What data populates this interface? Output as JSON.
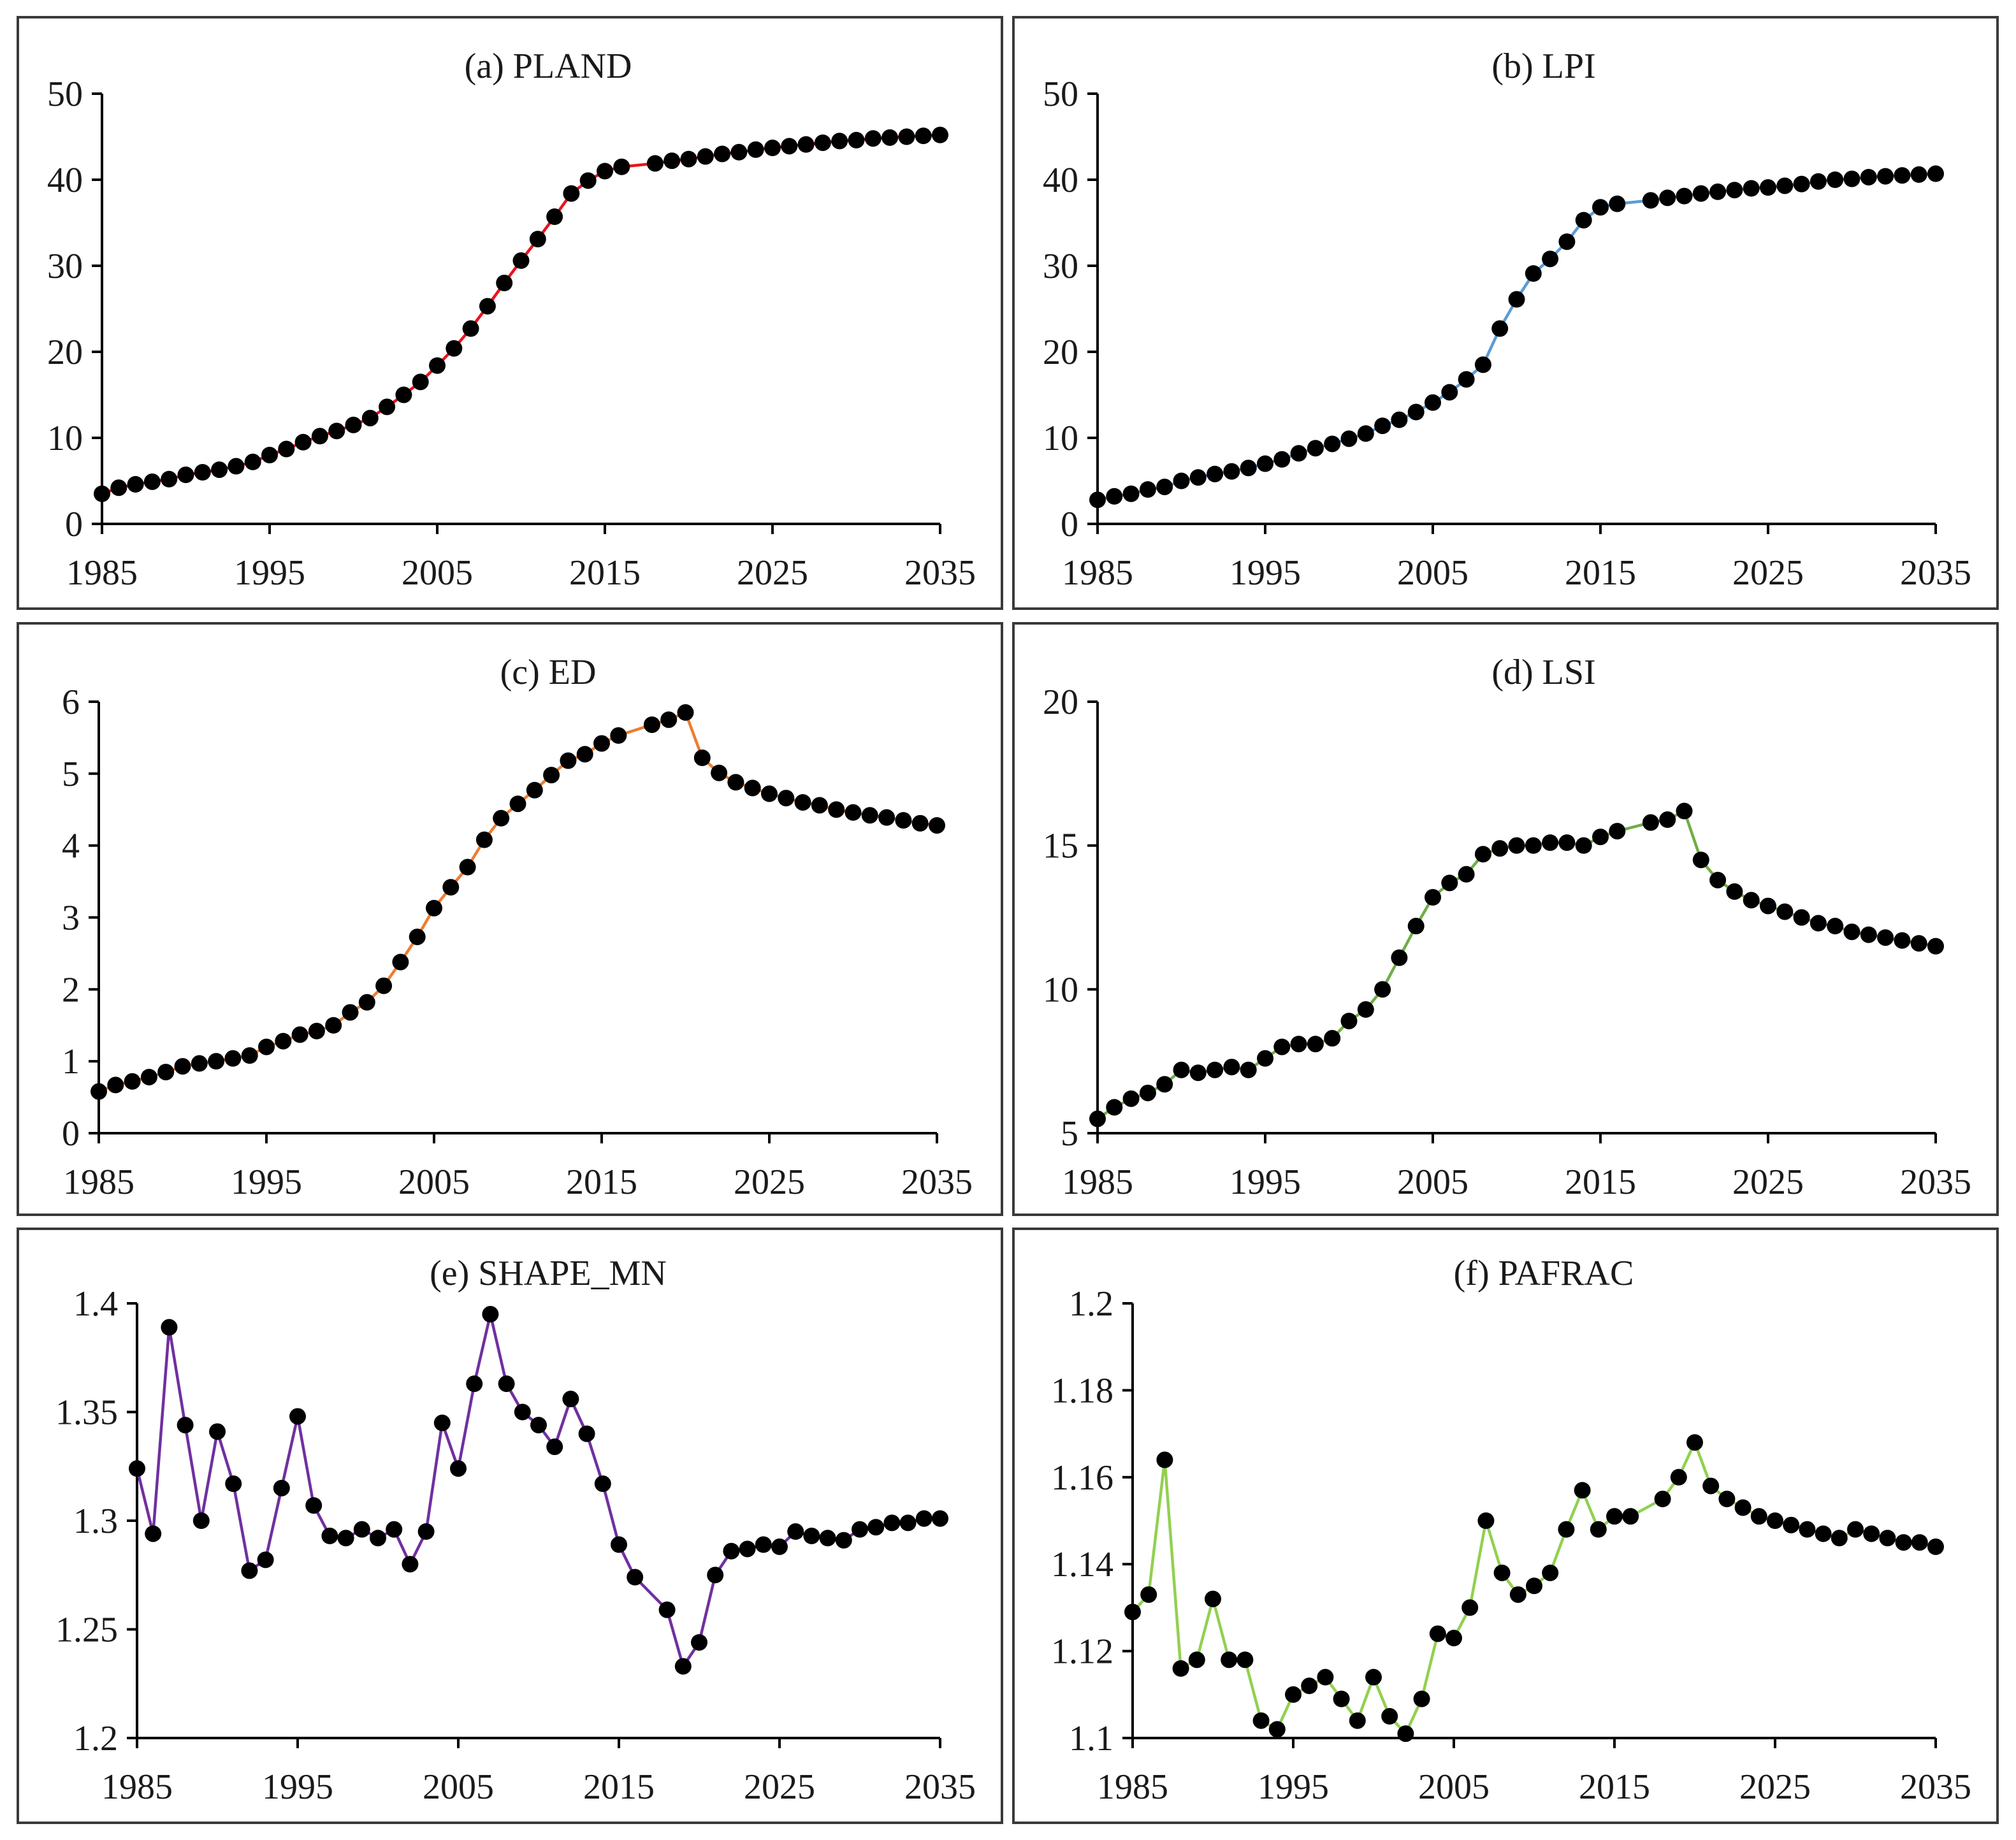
{
  "chart_data": [
    {
      "type": "line",
      "title": "(a) PLAND",
      "color": "#e8141c",
      "ylim": [
        0,
        50
      ],
      "yticks": [
        0,
        10,
        20,
        30,
        40,
        50
      ],
      "xlim": [
        1985,
        2035
      ],
      "xticks": [
        1985,
        1995,
        2005,
        2015,
        2025,
        2035
      ],
      "x": [
        1985,
        1986,
        1987,
        1988,
        1989,
        1990,
        1991,
        1992,
        1993,
        1994,
        1995,
        1996,
        1997,
        1998,
        1999,
        2000,
        2001,
        2002,
        2003,
        2004,
        2005,
        2006,
        2007,
        2008,
        2009,
        2010,
        2011,
        2012,
        2013,
        2014,
        2015,
        2016,
        2018,
        2019,
        2020,
        2021,
        2022,
        2023,
        2024,
        2025,
        2026,
        2027,
        2028,
        2029,
        2030,
        2031,
        2032,
        2033,
        2034,
        2035
      ],
      "values": [
        3.5,
        4.2,
        4.6,
        4.9,
        5.2,
        5.7,
        6.0,
        6.3,
        6.7,
        7.2,
        8.0,
        8.7,
        9.5,
        10.2,
        10.8,
        11.5,
        12.3,
        13.6,
        15.0,
        16.5,
        18.4,
        20.4,
        22.7,
        25.3,
        28.0,
        30.6,
        33.1,
        35.7,
        38.4,
        39.9,
        41.0,
        41.5,
        41.9,
        42.2,
        42.4,
        42.7,
        43.0,
        43.2,
        43.5,
        43.7,
        43.9,
        44.1,
        44.3,
        44.5,
        44.6,
        44.8,
        44.9,
        45.0,
        45.1,
        45.2
      ]
    },
    {
      "type": "line",
      "title": "(b) LPI",
      "color": "#5b9bd5",
      "ylim": [
        0,
        50
      ],
      "yticks": [
        0,
        10,
        20,
        30,
        40,
        50
      ],
      "xlim": [
        1985,
        2035
      ],
      "xticks": [
        1985,
        1995,
        2005,
        2015,
        2025,
        2035
      ],
      "x": [
        1985,
        1986,
        1987,
        1988,
        1989,
        1990,
        1991,
        1992,
        1993,
        1994,
        1995,
        1996,
        1997,
        1998,
        1999,
        2000,
        2001,
        2002,
        2003,
        2004,
        2005,
        2006,
        2007,
        2008,
        2009,
        2010,
        2011,
        2012,
        2013,
        2014,
        2015,
        2016,
        2018,
        2019,
        2020,
        2021,
        2022,
        2023,
        2024,
        2025,
        2026,
        2027,
        2028,
        2029,
        2030,
        2031,
        2032,
        2033,
        2034,
        2035
      ],
      "values": [
        2.8,
        3.2,
        3.5,
        4.0,
        4.3,
        5.0,
        5.4,
        5.8,
        6.1,
        6.5,
        7.0,
        7.5,
        8.2,
        8.8,
        9.3,
        9.9,
        10.5,
        11.4,
        12.1,
        13.0,
        14.1,
        15.3,
        16.8,
        18.5,
        22.7,
        26.1,
        29.1,
        30.8,
        32.8,
        35.3,
        36.8,
        37.2,
        37.6,
        37.9,
        38.1,
        38.4,
        38.6,
        38.8,
        39.0,
        39.1,
        39.3,
        39.5,
        39.8,
        40.0,
        40.1,
        40.3,
        40.4,
        40.5,
        40.6,
        40.7
      ]
    },
    {
      "type": "line",
      "title": "(c) ED",
      "color": "#ed7d31",
      "ylim": [
        0,
        6
      ],
      "yticks": [
        0,
        1,
        2,
        3,
        4,
        5,
        6
      ],
      "xlim": [
        1985,
        2035
      ],
      "xticks": [
        1985,
        1995,
        2005,
        2015,
        2025,
        2035
      ],
      "x": [
        1985,
        1986,
        1987,
        1988,
        1989,
        1990,
        1991,
        1992,
        1993,
        1994,
        1995,
        1996,
        1997,
        1998,
        1999,
        2000,
        2001,
        2002,
        2003,
        2004,
        2005,
        2006,
        2007,
        2008,
        2009,
        2010,
        2011,
        2012,
        2013,
        2014,
        2015,
        2016,
        2018,
        2019,
        2020,
        2021,
        2022,
        2023,
        2024,
        2025,
        2026,
        2027,
        2028,
        2029,
        2030,
        2031,
        2032,
        2033,
        2034,
        2035
      ],
      "values": [
        0.58,
        0.67,
        0.72,
        0.78,
        0.85,
        0.93,
        0.97,
        1.0,
        1.04,
        1.08,
        1.2,
        1.28,
        1.37,
        1.42,
        1.5,
        1.68,
        1.82,
        2.05,
        2.38,
        2.73,
        3.13,
        3.42,
        3.7,
        4.08,
        4.38,
        4.58,
        4.77,
        4.98,
        5.18,
        5.27,
        5.42,
        5.53,
        5.68,
        5.75,
        5.85,
        5.22,
        5.01,
        4.88,
        4.8,
        4.72,
        4.66,
        4.6,
        4.56,
        4.5,
        4.46,
        4.42,
        4.39,
        4.35,
        4.31,
        4.28
      ]
    },
    {
      "type": "line",
      "title": "(d) LSI",
      "color": "#70ad47",
      "ylim": [
        5,
        20
      ],
      "yticks": [
        5,
        10,
        15,
        20
      ],
      "xlim": [
        1985,
        2035
      ],
      "xticks": [
        1985,
        1995,
        2005,
        2015,
        2025,
        2035
      ],
      "x": [
        1985,
        1986,
        1987,
        1988,
        1989,
        1990,
        1991,
        1992,
        1993,
        1994,
        1995,
        1996,
        1997,
        1998,
        1999,
        2000,
        2001,
        2002,
        2003,
        2004,
        2005,
        2006,
        2007,
        2008,
        2009,
        2010,
        2011,
        2012,
        2013,
        2014,
        2015,
        2016,
        2018,
        2019,
        2020,
        2021,
        2022,
        2023,
        2024,
        2025,
        2026,
        2027,
        2028,
        2029,
        2030,
        2031,
        2032,
        2033,
        2034,
        2035
      ],
      "values": [
        5.5,
        5.9,
        6.2,
        6.4,
        6.7,
        7.2,
        7.1,
        7.2,
        7.3,
        7.2,
        7.6,
        8.0,
        8.1,
        8.1,
        8.3,
        8.9,
        9.3,
        10.0,
        11.1,
        12.2,
        13.2,
        13.7,
        14.0,
        14.7,
        14.9,
        15.0,
        15.0,
        15.1,
        15.1,
        15.0,
        15.3,
        15.5,
        15.8,
        15.9,
        16.2,
        14.5,
        13.8,
        13.4,
        13.1,
        12.9,
        12.7,
        12.5,
        12.3,
        12.2,
        12.0,
        11.9,
        11.8,
        11.7,
        11.6,
        11.5
      ]
    },
    {
      "type": "line",
      "title": "(e) SHAPE_MN",
      "color": "#7030a0",
      "ylim": [
        1.2,
        1.4
      ],
      "yticks": [
        1.2,
        1.25,
        1.3,
        1.35,
        1.4
      ],
      "ytick_labels": [
        "1.2",
        "1.25",
        "1.3",
        "1.35",
        "1.4"
      ],
      "xlim": [
        1985,
        2035
      ],
      "xticks": [
        1985,
        1995,
        2005,
        2015,
        2025,
        2035
      ],
      "x": [
        1985,
        1986,
        1987,
        1988,
        1989,
        1990,
        1991,
        1992,
        1993,
        1994,
        1995,
        1996,
        1997,
        1998,
        1999,
        2000,
        2001,
        2002,
        2003,
        2004,
        2005,
        2006,
        2007,
        2008,
        2009,
        2010,
        2011,
        2012,
        2013,
        2014,
        2015,
        2016,
        2018,
        2019,
        2020,
        2021,
        2022,
        2023,
        2024,
        2025,
        2026,
        2027,
        2028,
        2029,
        2030,
        2031,
        2032,
        2033,
        2034,
        2035
      ],
      "values": [
        1.324,
        1.294,
        1.389,
        1.344,
        1.3,
        1.341,
        1.317,
        1.277,
        1.282,
        1.315,
        1.348,
        1.307,
        1.293,
        1.292,
        1.296,
        1.292,
        1.296,
        1.28,
        1.295,
        1.345,
        1.324,
        1.363,
        1.395,
        1.363,
        1.35,
        1.344,
        1.334,
        1.356,
        1.34,
        1.317,
        1.289,
        1.274,
        1.259,
        1.233,
        1.244,
        1.275,
        1.286,
        1.287,
        1.289,
        1.288,
        1.295,
        1.293,
        1.292,
        1.291,
        1.296,
        1.297,
        1.299,
        1.299,
        1.301,
        1.301
      ]
    },
    {
      "type": "line",
      "title": "(f) PAFRAC",
      "color": "#92d050",
      "ylim": [
        1.1,
        1.2
      ],
      "yticks": [
        1.1,
        1.12,
        1.14,
        1.16,
        1.18,
        1.2
      ],
      "ytick_labels": [
        "1.1",
        "1.12",
        "1.14",
        "1.16",
        "1.18",
        "1.2"
      ],
      "xlim": [
        1985,
        2035
      ],
      "xticks": [
        1985,
        1995,
        2005,
        2015,
        2025,
        2035
      ],
      "x": [
        1985,
        1986,
        1987,
        1988,
        1989,
        1990,
        1991,
        1992,
        1993,
        1994,
        1995,
        1996,
        1997,
        1998,
        1999,
        2000,
        2001,
        2002,
        2003,
        2004,
        2005,
        2006,
        2007,
        2008,
        2009,
        2010,
        2011,
        2012,
        2013,
        2014,
        2015,
        2016,
        2018,
        2019,
        2020,
        2021,
        2022,
        2023,
        2024,
        2025,
        2026,
        2027,
        2028,
        2029,
        2030,
        2031,
        2032,
        2033,
        2034,
        2035
      ],
      "values": [
        1.129,
        1.133,
        1.164,
        1.116,
        1.118,
        1.132,
        1.118,
        1.118,
        1.104,
        1.102,
        1.11,
        1.112,
        1.114,
        1.109,
        1.104,
        1.114,
        1.105,
        1.101,
        1.109,
        1.124,
        1.123,
        1.13,
        1.15,
        1.138,
        1.133,
        1.135,
        1.138,
        1.148,
        1.157,
        1.148,
        1.151,
        1.151,
        1.155,
        1.16,
        1.168,
        1.158,
        1.155,
        1.153,
        1.151,
        1.15,
        1.149,
        1.148,
        1.147,
        1.146,
        1.148,
        1.147,
        1.146,
        1.145,
        1.145,
        1.144
      ]
    }
  ]
}
